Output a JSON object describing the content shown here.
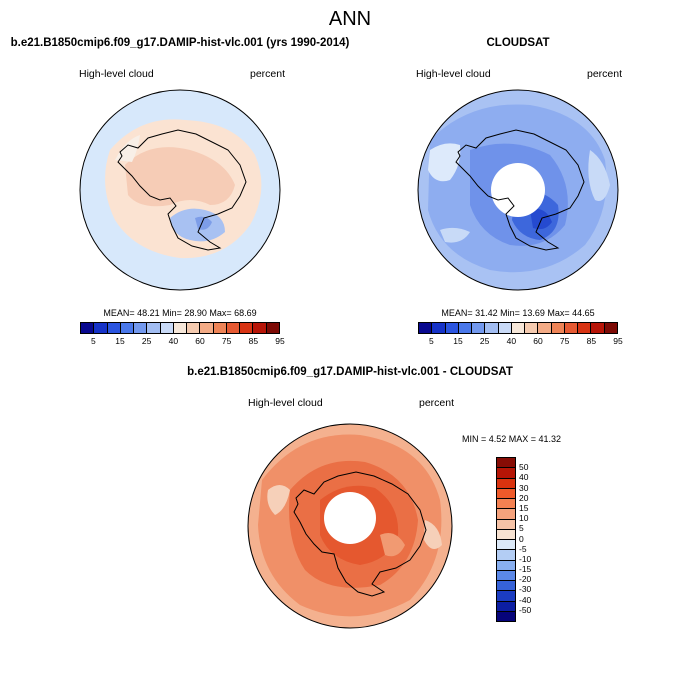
{
  "page": {
    "title": "ANN"
  },
  "panels": {
    "model": {
      "title": "b.e21.B1850cmip6.f09_g17.DAMIP-hist-vlc.001 (yrs 1990-2014)",
      "variable": "High-level cloud",
      "units": "percent",
      "stats": "MEAN=  48.21  Min=  28.90  Max=  68.69",
      "mean": 48.21,
      "min": 28.9,
      "max": 68.69
    },
    "obs": {
      "title": "CLOUDSAT",
      "variable": "High-level cloud",
      "units": "percent",
      "stats": "MEAN=  31.42  Min=  13.69  Max=  44.65",
      "mean": 31.42,
      "min": 13.69,
      "max": 44.65
    },
    "diff": {
      "title": "b.e21.B1850cmip6.f09_g17.DAMIP-hist-vlc.001 - CLOUDSAT",
      "variable": "High-level cloud",
      "units": "percent",
      "stats": "MIN =  4.52 MAX =  41.32",
      "min": 4.52,
      "max": 41.32
    }
  },
  "colorbars": {
    "abs": {
      "labels": [
        "5",
        "15",
        "25",
        "40",
        "60",
        "75",
        "85",
        "95"
      ],
      "colors": [
        "#08088f",
        "#1633c8",
        "#2b55e0",
        "#4a78ea",
        "#7399ee",
        "#a2bdf2",
        "#c9daf7",
        "#f6e7d9",
        "#f5cbb0",
        "#f3ab86",
        "#ee8457",
        "#e65a33",
        "#d83414",
        "#b71508",
        "#7d0a05"
      ]
    },
    "diff": {
      "labels": [
        "50",
        "40",
        "30",
        "20",
        "15",
        "10",
        "5",
        "0",
        "-5",
        "-10",
        "-15",
        "-20",
        "-30",
        "-40",
        "-50"
      ],
      "colors": [
        "#860c05",
        "#b51506",
        "#d9330f",
        "#ef5a2a",
        "#f48152",
        "#f5a27c",
        "#f6c3a7",
        "#f7e2d1",
        "#dce9f8",
        "#b3cdf4",
        "#88aff0",
        "#5b88e8",
        "#3662d8",
        "#1b3cc1",
        "#0c1ea3",
        "#06047a"
      ]
    }
  }
}
